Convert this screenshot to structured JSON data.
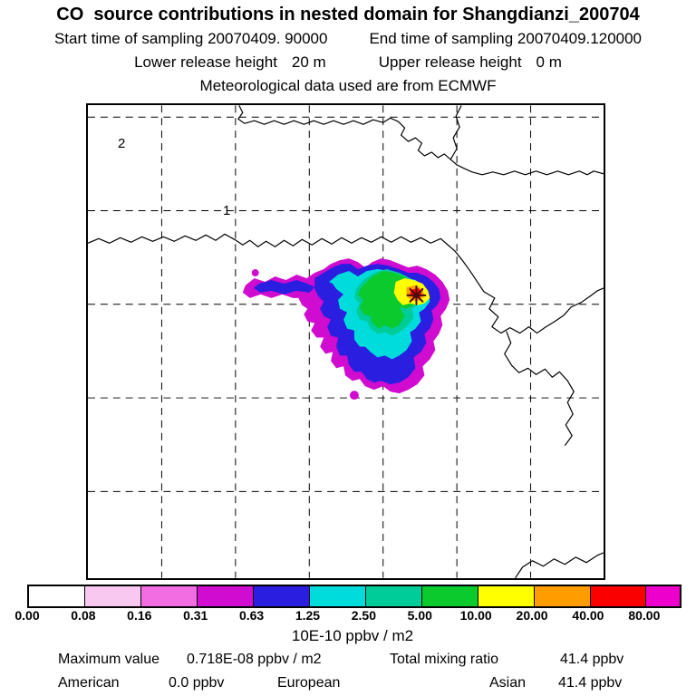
{
  "header": {
    "title": "CO  source contributions in nested domain for Shangdianzi_200704",
    "sampling_line": {
      "start": "Start time of sampling 20070409. 90000",
      "end": "End time of sampling 20070409.120000"
    },
    "release_line": {
      "lower_label": "Lower release height",
      "lower_value": "20 m",
      "upper_label": "Upper release height",
      "upper_value": "0 m"
    },
    "met_line": "Meteorological data used are from ECMWF"
  },
  "map": {
    "domain_labels": {
      "outer": "2",
      "inner": "1"
    }
  },
  "chart_data": {
    "type": "heatmap",
    "title": "CO source contributions in nested domain for Shangdianzi_200704",
    "station": "Shangdianzi",
    "period": "200704",
    "nested_domains": [
      "2",
      "1"
    ],
    "colorbar": {
      "orientation": "horizontal",
      "units": "10E-10 ppbv / m2",
      "levels": [
        0.0,
        0.08,
        0.16,
        0.31,
        0.63,
        1.25,
        2.5,
        5.0,
        10.0,
        20.0,
        40.0,
        80.0
      ],
      "tick_labels": [
        "0.00",
        "0.08",
        "0.16",
        "0.31",
        "0.63",
        "1.25",
        "2.50",
        "5.00",
        "10.00",
        "20.00",
        "40.00",
        "80.00"
      ],
      "segment_colors": [
        "#ffffff",
        "#f8c8f0",
        "#f26ce2",
        "#cf0ccf",
        "#2a1ee0",
        "#00dcdc",
        "#00cc99",
        "#0aca2e",
        "#ffff00",
        "#ff9d00",
        "#fa0000",
        "#ee00cc"
      ],
      "last_segment_ratio": 0.6
    },
    "max_value": "0.718E-08",
    "max_value_units": "ppbv / m2",
    "total_mixing_ratio_ppbv": 41.4,
    "contributions_ppbv": {
      "American": 0.0,
      "Asian": 41.4
    },
    "marker_color": "#4a0b0b"
  },
  "footer": {
    "units_label": "10E-10 ppbv / m2",
    "maximum_label": "Maximum value",
    "maximum_value": "0.718E-08 ppbv / m2",
    "total_label": "Total mixing ratio",
    "total_value": "41.4 ppbv",
    "regions": [
      {
        "label": "American",
        "value": "0.0 ppbv"
      },
      {
        "label": "European",
        "value": ""
      },
      {
        "label": "Asian",
        "value": "41.4 ppbv"
      }
    ]
  }
}
